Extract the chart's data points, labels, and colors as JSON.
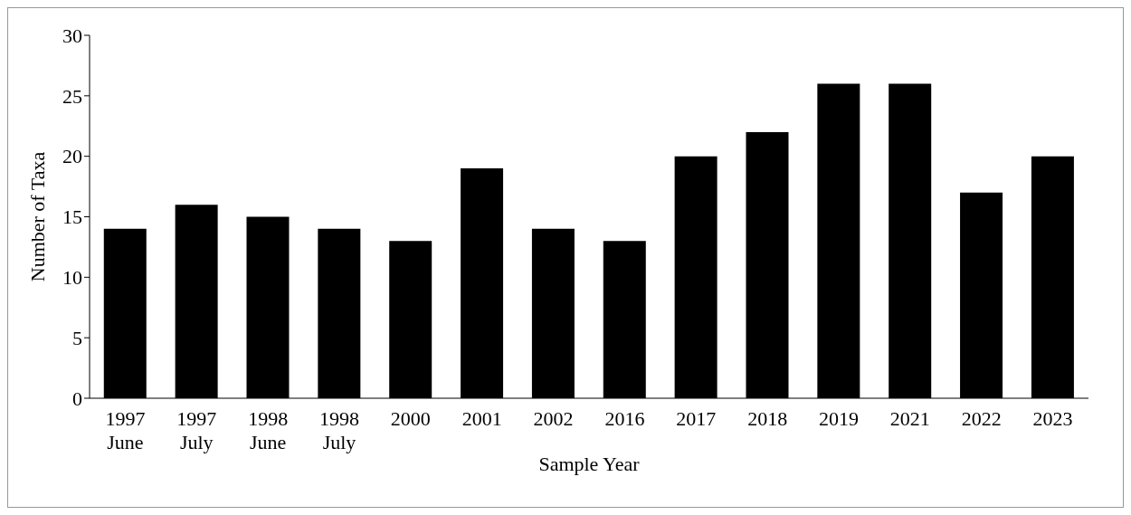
{
  "chart_data": {
    "type": "bar",
    "xlabel": "Sample Year",
    "ylabel": "Number of Taxa",
    "categories": [
      "1997\nJune",
      "1997\nJuly",
      "1998\nJune",
      "1998\nJuly",
      "2000",
      "2001",
      "2002",
      "2016",
      "2017",
      "2018",
      "2019",
      "2021",
      "2022",
      "2023"
    ],
    "values": [
      14,
      16,
      15,
      14,
      13,
      19,
      14,
      13,
      20,
      22,
      26,
      26,
      17,
      20
    ],
    "color": "#000000",
    "ylim": [
      0,
      30
    ],
    "yticks": [
      0,
      5,
      10,
      15,
      20,
      25,
      30
    ],
    "grid": false,
    "legend": false
  }
}
